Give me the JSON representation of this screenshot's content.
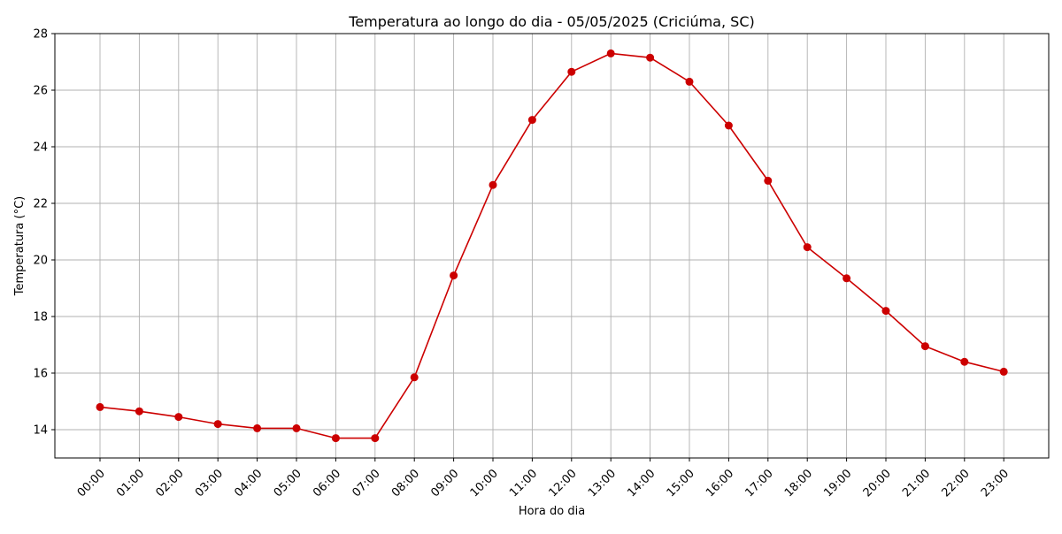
{
  "chart_data": {
    "type": "line",
    "title": "Temperatura ao longo do dia - 05/05/2025 (Criciúma, SC)",
    "xlabel": "Hora do dia",
    "ylabel": "Temperatura (°C)",
    "categories": [
      "00:00",
      "01:00",
      "02:00",
      "03:00",
      "04:00",
      "05:00",
      "06:00",
      "07:00",
      "08:00",
      "09:00",
      "10:00",
      "11:00",
      "12:00",
      "13:00",
      "14:00",
      "15:00",
      "16:00",
      "17:00",
      "18:00",
      "19:00",
      "20:00",
      "21:00",
      "22:00",
      "23:00"
    ],
    "series": [
      {
        "values": [
          14.8,
          14.65,
          14.45,
          14.2,
          14.05,
          14.05,
          13.7,
          13.7,
          15.85,
          19.45,
          22.65,
          24.95,
          26.65,
          27.3,
          27.15,
          26.3,
          24.75,
          22.8,
          20.45,
          19.35,
          18.2,
          16.95,
          16.4,
          16.05
        ],
        "color": "#cc0000"
      }
    ],
    "ylim": [
      13,
      28
    ],
    "yticks": [
      14,
      16,
      18,
      20,
      22,
      24,
      26,
      28
    ],
    "grid": true,
    "legend": "none",
    "x_tick_rotation": 45
  }
}
